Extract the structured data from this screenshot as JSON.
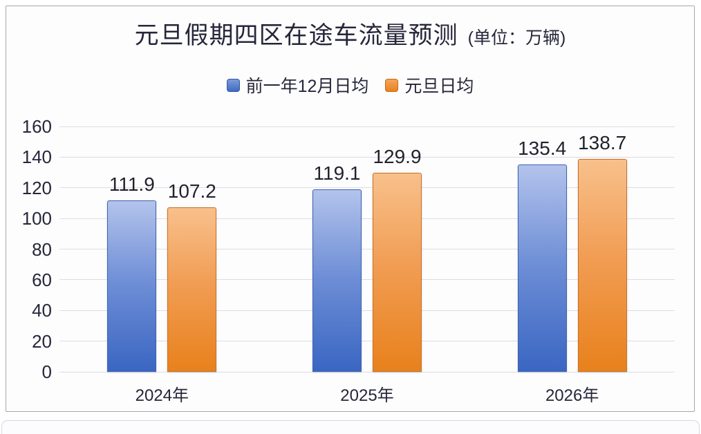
{
  "title": {
    "main": "元旦假期四区在途车流量预测",
    "unit": "(单位：万辆)"
  },
  "chart_data": {
    "type": "bar",
    "title": "元旦假期四区在途车流量预测",
    "unit_label": "单位：万辆",
    "categories": [
      "2024年",
      "2025年",
      "2026年"
    ],
    "series": [
      {
        "name": "前一年12月日均",
        "color": "#4472c4",
        "fill_top": "#b3c3ec",
        "fill_mid": "#6e8ed6",
        "fill_bottom": "#3a66c2",
        "border": "#3d64b0",
        "values": [
          111.9,
          119.1,
          135.4
        ]
      },
      {
        "name": "元旦日均",
        "color": "#ed7d31",
        "fill_top": "#f8c08b",
        "fill_mid": "#f19c52",
        "fill_bottom": "#e8811c",
        "border": "#cc7021",
        "values": [
          107.2,
          129.9,
          138.7
        ]
      }
    ],
    "ylim": [
      0,
      160
    ],
    "yticks": [
      0,
      20,
      40,
      60,
      80,
      100,
      120,
      140,
      160
    ],
    "grid": true,
    "legend_position": "top",
    "value_labels": true
  },
  "colors": {
    "text": "#26263a",
    "grid": "#dcdde3",
    "card_border": "#a6a7ae",
    "background": "#ffffff"
  }
}
